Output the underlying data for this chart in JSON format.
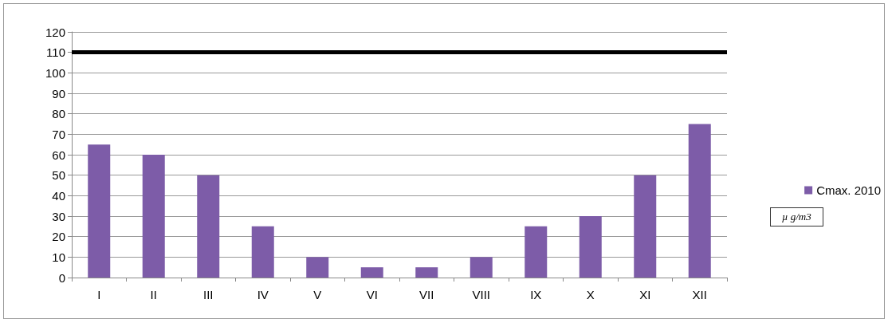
{
  "chart_data": {
    "type": "bar",
    "categories": [
      "I",
      "II",
      "III",
      "IV",
      "V",
      "VI",
      "VII",
      "VIII",
      "IX",
      "X",
      "XI",
      "XII"
    ],
    "series": [
      {
        "name": "Cmax. 2010",
        "color": "#7d5ca8",
        "values": [
          65,
          60,
          50,
          25,
          10,
          5,
          5,
          10,
          25,
          30,
          50,
          75
        ]
      }
    ],
    "ylim": [
      0,
      120
    ],
    "yticks": [
      0,
      10,
      20,
      30,
      40,
      50,
      60,
      70,
      80,
      90,
      100,
      110,
      120
    ],
    "grid": "y",
    "legend": "right",
    "ref_lines": [
      {
        "axis": "y",
        "value": 110,
        "color": "#000000"
      }
    ],
    "annotations": [
      "µ g/m3"
    ]
  }
}
